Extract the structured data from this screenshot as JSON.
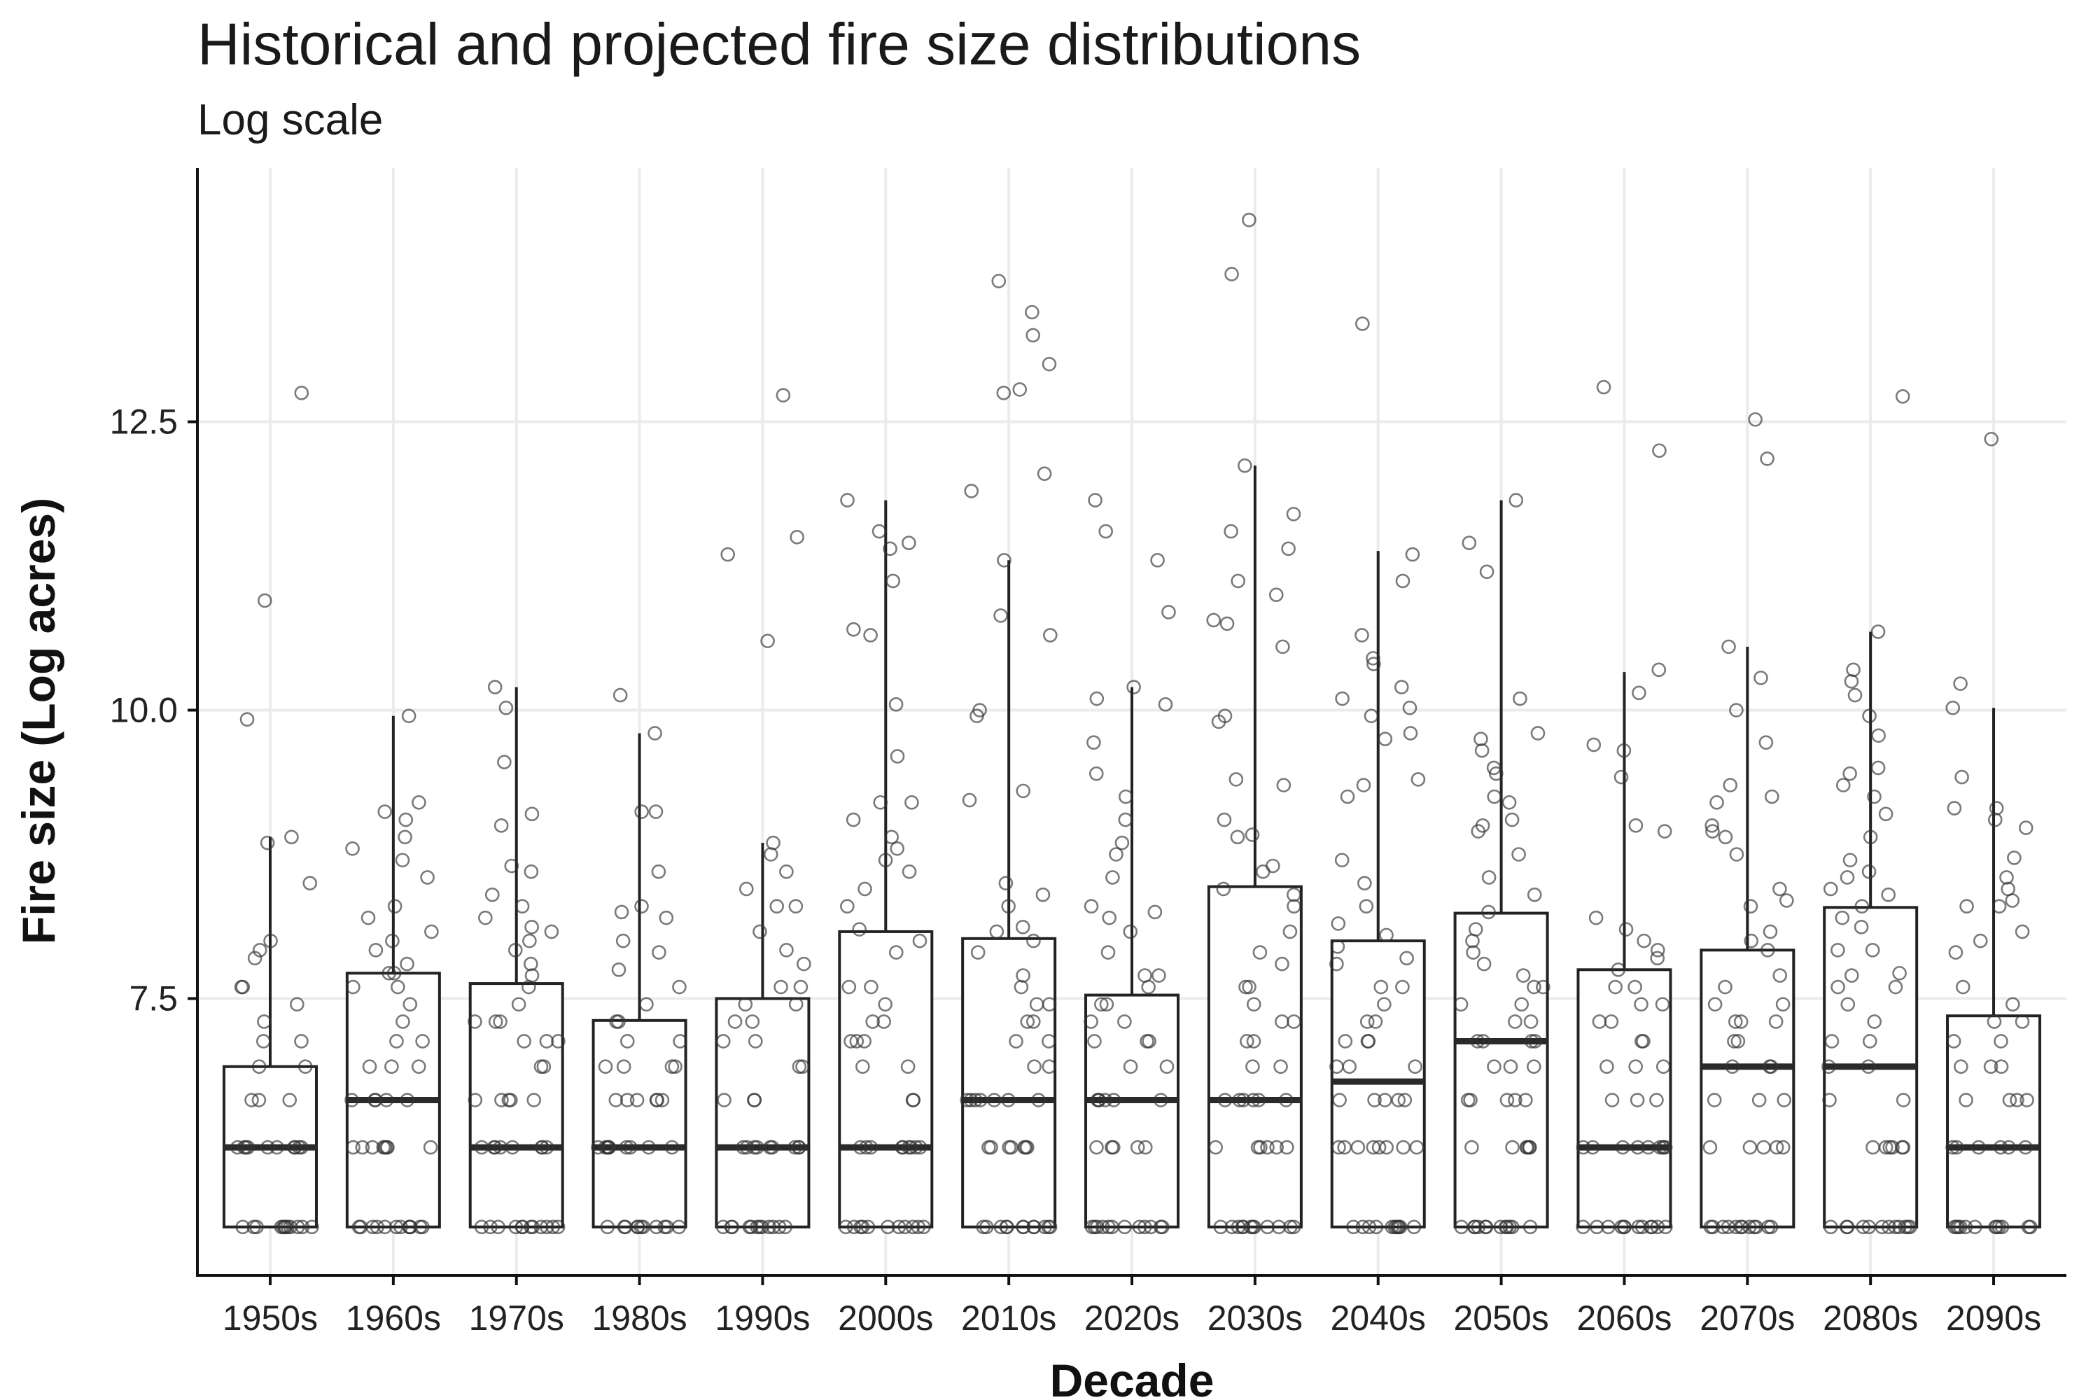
{
  "chart_data": {
    "type": "box",
    "title": "Historical and projected fire size distributions",
    "subtitle": "Log scale",
    "xlabel": "Decade",
    "ylabel": "Fire size (Log acres)",
    "ylim": [
      5.1,
      14.7
    ],
    "yticks": [
      7.5,
      10.0,
      12.5
    ],
    "ytick_labels": [
      "7.5",
      "10.0",
      "12.5"
    ],
    "grid": true,
    "legend": "none",
    "categories": [
      "1950s",
      "1960s",
      "1970s",
      "1980s",
      "1990s",
      "2000s",
      "2010s",
      "2020s",
      "2030s",
      "2040s",
      "2050s",
      "2060s",
      "2070s",
      "2080s",
      "2090s"
    ],
    "boxes": [
      {
        "q1": 5.52,
        "median": 6.21,
        "q3": 6.91,
        "whisker_low": 5.52,
        "whisker_high": 8.9
      },
      {
        "q1": 5.52,
        "median": 6.62,
        "q3": 7.72,
        "whisker_low": 5.52,
        "whisker_high": 9.95
      },
      {
        "q1": 5.52,
        "median": 6.21,
        "q3": 7.63,
        "whisker_low": 5.52,
        "whisker_high": 10.2
      },
      {
        "q1": 5.52,
        "median": 6.21,
        "q3": 7.31,
        "whisker_low": 5.52,
        "whisker_high": 9.8
      },
      {
        "q1": 5.52,
        "median": 6.21,
        "q3": 7.5,
        "whisker_low": 5.52,
        "whisker_high": 8.85
      },
      {
        "q1": 5.52,
        "median": 6.21,
        "q3": 8.08,
        "whisker_low": 5.52,
        "whisker_high": 11.82
      },
      {
        "q1": 5.52,
        "median": 6.62,
        "q3": 8.02,
        "whisker_low": 5.52,
        "whisker_high": 11.3
      },
      {
        "q1": 5.52,
        "median": 6.62,
        "q3": 7.53,
        "whisker_low": 5.52,
        "whisker_high": 10.2
      },
      {
        "q1": 5.52,
        "median": 6.62,
        "q3": 8.47,
        "whisker_low": 5.52,
        "whisker_high": 12.12
      },
      {
        "q1": 5.52,
        "median": 6.78,
        "q3": 8.0,
        "whisker_low": 5.52,
        "whisker_high": 11.38
      },
      {
        "q1": 5.52,
        "median": 7.13,
        "q3": 8.24,
        "whisker_low": 5.52,
        "whisker_high": 11.82
      },
      {
        "q1": 5.52,
        "median": 6.21,
        "q3": 7.75,
        "whisker_low": 5.52,
        "whisker_high": 10.33
      },
      {
        "q1": 5.52,
        "median": 6.91,
        "q3": 7.92,
        "whisker_low": 5.52,
        "whisker_high": 10.55
      },
      {
        "q1": 5.52,
        "median": 6.91,
        "q3": 8.29,
        "whisker_low": 5.52,
        "whisker_high": 10.68
      },
      {
        "q1": 5.52,
        "median": 6.21,
        "q3": 7.35,
        "whisker_low": 5.52,
        "whisker_high": 10.02
      }
    ],
    "points": [
      [
        5.52,
        5.52,
        5.52,
        5.52,
        5.52,
        5.52,
        5.52,
        5.52,
        5.52,
        5.52,
        5.52,
        5.52,
        6.21,
        6.21,
        6.21,
        6.21,
        6.21,
        6.21,
        6.21,
        6.21,
        6.21,
        6.21,
        6.62,
        6.62,
        6.62,
        6.91,
        6.91,
        7.13,
        7.13,
        7.3,
        7.45,
        7.6,
        7.6,
        7.85,
        7.92,
        8.0,
        8.5,
        8.85,
        8.9,
        9.92,
        10.95,
        12.75
      ],
      [
        5.52,
        5.52,
        5.52,
        5.52,
        5.52,
        5.52,
        5.52,
        5.52,
        5.52,
        5.52,
        5.52,
        5.52,
        6.21,
        6.21,
        6.21,
        6.21,
        6.21,
        6.21,
        6.21,
        6.21,
        6.62,
        6.62,
        6.62,
        6.62,
        6.62,
        6.91,
        6.91,
        6.91,
        7.13,
        7.13,
        7.3,
        7.45,
        7.6,
        7.6,
        7.72,
        7.72,
        7.8,
        7.92,
        8.0,
        8.08,
        8.2,
        8.3,
        8.55,
        8.7,
        8.8,
        8.9,
        9.05,
        9.12,
        9.2,
        9.95
      ],
      [
        5.52,
        5.52,
        5.52,
        5.52,
        5.52,
        5.52,
        5.52,
        5.52,
        5.52,
        5.52,
        5.52,
        5.52,
        6.21,
        6.21,
        6.21,
        6.21,
        6.21,
        6.21,
        6.21,
        6.21,
        6.62,
        6.62,
        6.62,
        6.62,
        6.62,
        6.91,
        6.91,
        7.13,
        7.13,
        7.13,
        7.3,
        7.3,
        7.3,
        7.45,
        7.6,
        7.7,
        7.8,
        7.92,
        8.0,
        8.08,
        8.12,
        8.2,
        8.3,
        8.4,
        8.6,
        8.65,
        9.0,
        9.1,
        9.55,
        10.02,
        10.2
      ],
      [
        5.52,
        5.52,
        5.52,
        5.52,
        5.52,
        5.52,
        5.52,
        5.52,
        5.52,
        5.52,
        5.52,
        6.21,
        6.21,
        6.21,
        6.21,
        6.21,
        6.21,
        6.21,
        6.21,
        6.21,
        6.21,
        6.62,
        6.62,
        6.62,
        6.62,
        6.62,
        6.62,
        6.91,
        6.91,
        6.91,
        6.91,
        7.13,
        7.13,
        7.3,
        7.3,
        7.45,
        7.6,
        7.75,
        7.9,
        8.0,
        8.2,
        8.25,
        8.3,
        8.6,
        9.12,
        9.12,
        9.8,
        10.13
      ],
      [
        5.52,
        5.52,
        5.52,
        5.52,
        5.52,
        5.52,
        5.52,
        5.52,
        5.52,
        5.52,
        5.52,
        5.52,
        6.21,
        6.21,
        6.21,
        6.21,
        6.21,
        6.21,
        6.21,
        6.21,
        6.21,
        6.62,
        6.62,
        6.62,
        6.91,
        6.91,
        7.13,
        7.13,
        7.3,
        7.3,
        7.45,
        7.45,
        7.6,
        7.6,
        7.8,
        7.92,
        8.08,
        8.3,
        8.3,
        8.45,
        8.6,
        8.75,
        8.85,
        10.6,
        11.35,
        11.5,
        12.73
      ],
      [
        5.52,
        5.52,
        5.52,
        5.52,
        5.52,
        5.52,
        5.52,
        5.52,
        5.52,
        5.52,
        5.52,
        6.21,
        6.21,
        6.21,
        6.21,
        6.21,
        6.21,
        6.21,
        6.21,
        6.21,
        6.62,
        6.62,
        6.91,
        6.91,
        7.13,
        7.13,
        7.13,
        7.3,
        7.3,
        7.45,
        7.6,
        7.6,
        7.9,
        8.0,
        8.1,
        8.3,
        8.45,
        8.6,
        8.7,
        8.8,
        8.9,
        9.05,
        9.2,
        9.2,
        9.6,
        10.05,
        10.65,
        10.7,
        11.12,
        11.4,
        11.45,
        11.55,
        11.82
      ],
      [
        5.52,
        5.52,
        5.52,
        5.52,
        5.52,
        5.52,
        5.52,
        5.52,
        5.52,
        5.52,
        5.52,
        5.52,
        6.21,
        6.21,
        6.21,
        6.21,
        6.21,
        6.21,
        6.21,
        6.62,
        6.62,
        6.62,
        6.62,
        6.62,
        6.62,
        6.62,
        6.91,
        6.91,
        7.13,
        7.13,
        7.3,
        7.3,
        7.45,
        7.45,
        7.6,
        7.7,
        7.9,
        8.0,
        8.08,
        8.12,
        8.3,
        8.4,
        8.5,
        9.22,
        9.3,
        9.95,
        10.0,
        10.65,
        10.82,
        11.3,
        11.9,
        12.05,
        12.75,
        12.78,
        13.0,
        13.25,
        13.45,
        13.72
      ],
      [
        5.52,
        5.52,
        5.52,
        5.52,
        5.52,
        5.52,
        5.52,
        5.52,
        5.52,
        5.52,
        5.52,
        5.52,
        6.21,
        6.21,
        6.21,
        6.21,
        6.21,
        6.62,
        6.62,
        6.62,
        6.62,
        6.62,
        6.62,
        6.91,
        6.91,
        7.13,
        7.13,
        7.13,
        7.3,
        7.3,
        7.45,
        7.45,
        7.6,
        7.7,
        7.7,
        7.9,
        8.08,
        8.2,
        8.25,
        8.3,
        8.55,
        8.75,
        8.85,
        9.05,
        9.25,
        9.45,
        9.72,
        10.05,
        10.1,
        10.2,
        10.85,
        11.3,
        11.55,
        11.82
      ],
      [
        5.52,
        5.52,
        5.52,
        5.52,
        5.52,
        5.52,
        5.52,
        5.52,
        5.52,
        5.52,
        5.52,
        5.52,
        6.21,
        6.21,
        6.21,
        6.21,
        6.21,
        6.21,
        6.62,
        6.62,
        6.62,
        6.62,
        6.62,
        6.62,
        6.91,
        6.91,
        7.13,
        7.13,
        7.3,
        7.3,
        7.45,
        7.6,
        7.6,
        7.8,
        7.9,
        8.08,
        8.3,
        8.4,
        8.45,
        8.6,
        8.65,
        8.9,
        8.92,
        9.05,
        9.35,
        9.4,
        9.9,
        9.95,
        10.55,
        10.75,
        10.78,
        11.0,
        11.12,
        11.4,
        11.55,
        11.7,
        12.12,
        13.78,
        14.25
      ],
      [
        5.52,
        5.52,
        5.52,
        5.52,
        5.52,
        5.52,
        5.52,
        5.52,
        5.52,
        5.52,
        5.52,
        6.21,
        6.21,
        6.21,
        6.21,
        6.21,
        6.21,
        6.21,
        6.21,
        6.62,
        6.62,
        6.62,
        6.62,
        6.62,
        6.91,
        6.91,
        6.91,
        7.13,
        7.13,
        7.13,
        7.3,
        7.3,
        7.45,
        7.6,
        7.6,
        7.8,
        7.85,
        7.95,
        8.05,
        8.15,
        8.3,
        8.5,
        8.7,
        9.25,
        9.35,
        9.4,
        9.75,
        9.8,
        9.95,
        10.02,
        10.1,
        10.2,
        10.4,
        10.45,
        10.65,
        11.12,
        11.35,
        13.35
      ],
      [
        5.52,
        5.52,
        5.52,
        5.52,
        5.52,
        5.52,
        5.52,
        5.52,
        5.52,
        5.52,
        5.52,
        5.52,
        6.21,
        6.21,
        6.21,
        6.21,
        6.21,
        6.21,
        6.62,
        6.62,
        6.62,
        6.62,
        6.62,
        6.91,
        6.91,
        6.91,
        7.13,
        7.13,
        7.13,
        7.13,
        7.3,
        7.3,
        7.45,
        7.45,
        7.6,
        7.6,
        7.7,
        7.8,
        7.9,
        8.0,
        8.1,
        8.25,
        8.4,
        8.55,
        8.75,
        8.95,
        9.0,
        9.05,
        9.2,
        9.25,
        9.45,
        9.5,
        9.65,
        9.75,
        9.8,
        10.1,
        11.2,
        11.45,
        11.82
      ],
      [
        5.52,
        5.52,
        5.52,
        5.52,
        5.52,
        5.52,
        5.52,
        5.52,
        5.52,
        5.52,
        5.52,
        5.52,
        6.21,
        6.21,
        6.21,
        6.21,
        6.21,
        6.21,
        6.21,
        6.21,
        6.21,
        6.62,
        6.62,
        6.62,
        6.91,
        6.91,
        6.91,
        7.13,
        7.13,
        7.3,
        7.3,
        7.45,
        7.45,
        7.6,
        7.6,
        7.75,
        7.85,
        7.92,
        8.0,
        8.1,
        8.2,
        8.95,
        9.0,
        9.42,
        9.65,
        9.7,
        10.15,
        10.35,
        12.25,
        12.8
      ],
      [
        5.52,
        5.52,
        5.52,
        5.52,
        5.52,
        5.52,
        5.52,
        5.52,
        5.52,
        5.52,
        5.52,
        5.52,
        6.21,
        6.21,
        6.21,
        6.21,
        6.21,
        6.62,
        6.62,
        6.62,
        6.91,
        6.91,
        6.91,
        7.13,
        7.13,
        7.3,
        7.3,
        7.3,
        7.45,
        7.45,
        7.6,
        7.7,
        7.92,
        8.0,
        8.08,
        8.3,
        8.35,
        8.45,
        8.75,
        8.9,
        8.95,
        9.0,
        9.2,
        9.25,
        9.35,
        9.72,
        10.0,
        10.28,
        10.55,
        12.18,
        12.52
      ],
      [
        5.52,
        5.52,
        5.52,
        5.52,
        5.52,
        5.52,
        5.52,
        5.52,
        5.52,
        5.52,
        5.52,
        5.52,
        6.21,
        6.21,
        6.21,
        6.21,
        6.21,
        6.21,
        6.62,
        6.62,
        6.91,
        6.91,
        7.13,
        7.13,
        7.3,
        7.45,
        7.6,
        7.6,
        7.7,
        7.72,
        7.92,
        7.92,
        8.12,
        8.2,
        8.3,
        8.4,
        8.45,
        8.55,
        8.6,
        8.7,
        8.9,
        9.1,
        9.25,
        9.35,
        9.45,
        9.5,
        9.78,
        9.95,
        10.13,
        10.25,
        10.35,
        10.68,
        12.72
      ],
      [
        5.52,
        5.52,
        5.52,
        5.52,
        5.52,
        5.52,
        5.52,
        5.52,
        5.52,
        5.52,
        5.52,
        5.52,
        6.21,
        6.21,
        6.21,
        6.21,
        6.21,
        6.21,
        6.62,
        6.62,
        6.62,
        6.62,
        6.91,
        6.91,
        6.91,
        7.13,
        7.13,
        7.3,
        7.3,
        7.45,
        7.6,
        7.9,
        8.0,
        8.08,
        8.3,
        8.3,
        8.35,
        8.45,
        8.55,
        8.72,
        8.98,
        9.05,
        9.15,
        9.15,
        9.42,
        10.02,
        10.23,
        12.35
      ]
    ]
  }
}
